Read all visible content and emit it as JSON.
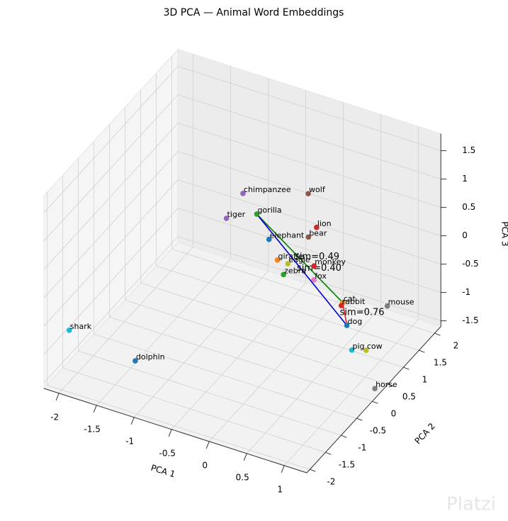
{
  "chart_data": {
    "type": "scatter3d",
    "title": "3D PCA — Animal Word Embeddings",
    "xlabel": "PCA 1",
    "ylabel": "PCA 2",
    "zlabel": "PCA 3",
    "labels": [
      "shark",
      "dolphin",
      "horse",
      "pig",
      "cow",
      "dog",
      "cat",
      "rabbit",
      "mouse",
      "fox",
      "monkey",
      "eagle",
      "giraffe",
      "zebra",
      "elephant",
      "bear",
      "lion",
      "gorilla",
      "tiger",
      "chimpanzee",
      "wolf"
    ],
    "x": [
      -1.9,
      -1.2,
      1.26,
      0.82,
      0.97,
      0.75,
      0.6,
      0.56,
      0.77,
      0.25,
      0.28,
      -0.01,
      -0.1,
      -0.06,
      -0.22,
      0.11,
      0.21,
      -0.37,
      -0.75,
      -0.6,
      0.02
    ],
    "y": [
      -2.01,
      -1.58,
      0.18,
      0.5,
      0.6,
      0.51,
      0.74,
      0.79,
      1.76,
      0.66,
      0.59,
      0.45,
      0.33,
      0.43,
      0.35,
      0.82,
      0.84,
      0.32,
      0.26,
      0.43,
      1.03
    ],
    "z": [
      -0.5,
      -1.0,
      -1.5,
      -1.2,
      -1.2,
      -0.8,
      -0.6,
      -0.7,
      -1.2,
      -0.3,
      0.0,
      0.0,
      0.1,
      -0.2,
      0.4,
      0.3,
      0.5,
      0.8,
      0.6,
      1.0,
      0.9
    ],
    "colors": [
      "#17becf",
      "#1f77b4",
      "#7f7f7f",
      "#17becf",
      "#bcbd22",
      "#1f77b4",
      "#ff7f0e",
      "#d62728",
      "#7f7f7f",
      "#e377c2",
      "#d62728",
      "#bcbd22",
      "#ff7f0e",
      "#2ca02c",
      "#1f77b4",
      "#8c564b",
      "#d62728",
      "#2ca02c",
      "#9467bd",
      "#9467bd",
      "#8c564b"
    ],
    "links": [
      {
        "from": "gorilla",
        "to": "cat",
        "value": 0.49,
        "value_label": "sim=0.49",
        "color": "#008000"
      },
      {
        "from": "gorilla",
        "to": "dog",
        "value": 0.4,
        "value_label": "sim=0.40",
        "color": "#0000cc"
      },
      {
        "from": "cat",
        "to": "dog",
        "value": 0.76,
        "value_label": "sim=0.76",
        "color": "#d62728"
      }
    ],
    "xlim": [
      -2.2,
      1.3
    ],
    "ylim": [
      -2.1,
      2.2
    ],
    "zlim": [
      -1.6,
      1.8
    ],
    "xticks": [
      -2.0,
      -1.5,
      -1.0,
      -0.5,
      0.0,
      0.5,
      1.0
    ],
    "yticks": [
      -2.0,
      -1.5,
      -1.0,
      -0.5,
      0.0,
      0.5,
      1.0,
      1.5,
      2.0
    ],
    "zticks": [
      -1.5,
      -1.0,
      -0.5,
      0.0,
      0.5,
      1.0,
      1.5
    ],
    "grid": true,
    "watermark": "Platzi"
  }
}
